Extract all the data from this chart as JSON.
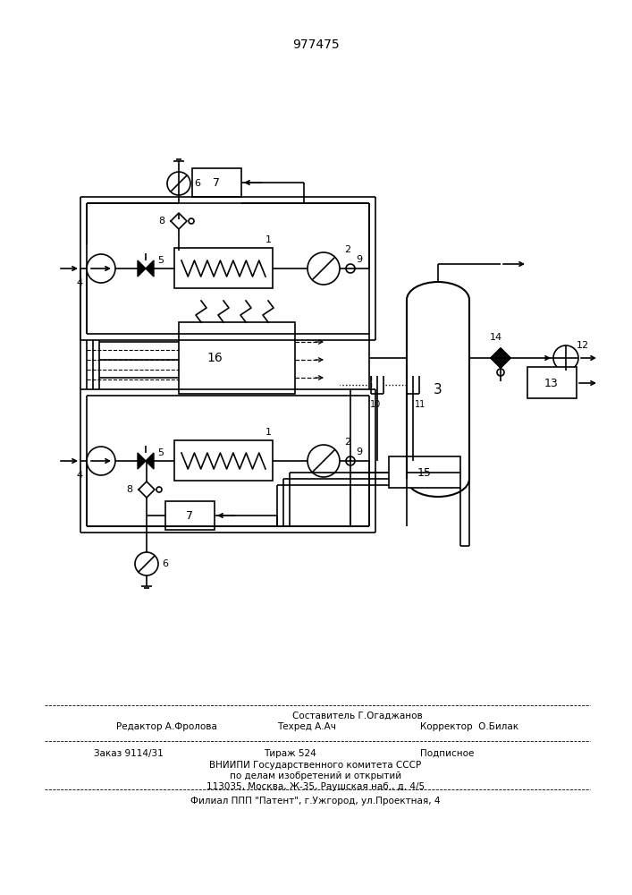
{
  "patent_number": "977475",
  "bg": "#ffffff",
  "lc": "#000000",
  "lw": 1.2,
  "footer": {
    "line1": "Составитель Г.Огаджанов",
    "line2_left": "Редактор А.Фролова",
    "line2_mid": "Техред А.Ач",
    "line2_right": "Корректор  О.Билак",
    "order": "Заказ 9114/31",
    "tirazh": "Тираж 524",
    "podp": "Подписное",
    "vniip1": "ВНИИПИ Государственного комитета СССР",
    "vniip2": "по делам изобретений и открытий",
    "vniip3": "113035, Москва, Ж-35, Раушская наб., д. 4/5",
    "filial": "Филиал ППП \"Патент\", г.Ужгород, ул.Проектная, 4"
  }
}
